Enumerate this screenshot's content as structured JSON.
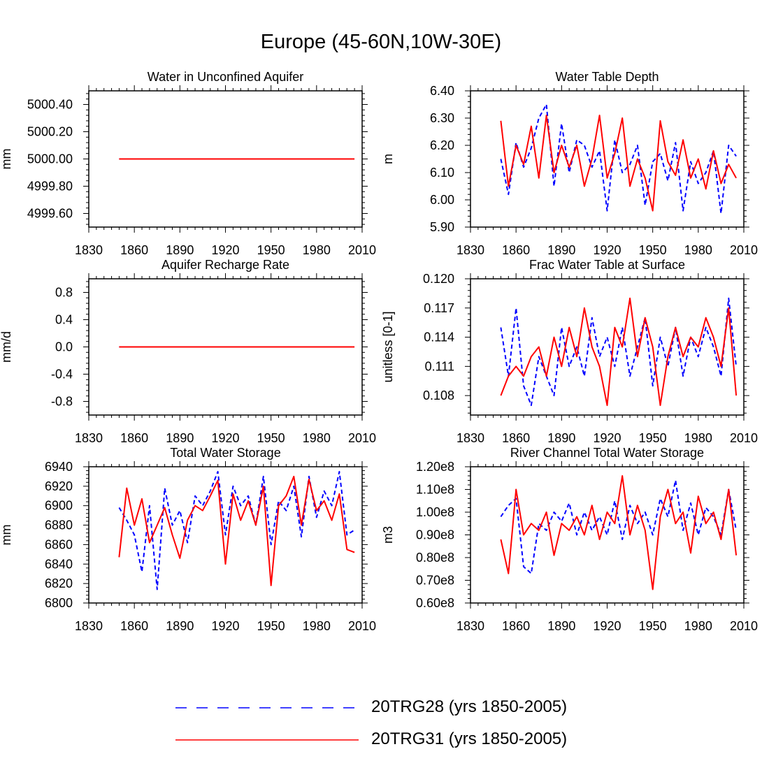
{
  "title": "Europe (45-60N,10W-30E)",
  "legend": [
    {
      "name": "20TRG28 (yrs 1850-2005)",
      "color": "#0000ff",
      "dash": "dashed"
    },
    {
      "name": "20TRG31 (yrs 1850-2005)",
      "color": "#ff0000",
      "dash": "solid"
    }
  ],
  "chart_data": [
    {
      "type": "line",
      "title": "Water in Unconfined Aquifer",
      "xlabel": "",
      "ylabel": "mm",
      "xlim": [
        1830,
        2010
      ],
      "ylim": [
        4999.5,
        5000.5
      ],
      "xticks": [
        1830,
        1860,
        1890,
        1920,
        1950,
        1980,
        2010
      ],
      "yticks": [
        4999.6,
        4999.8,
        5000.0,
        5000.2,
        5000.4
      ],
      "ytick_labels": [
        "4999.60",
        "4999.80",
        "5000.00",
        "5000.20",
        "5000.40"
      ],
      "x": [
        1850,
        2005
      ],
      "series": [
        {
          "name": "20TRG28 (yrs 1850-2005)",
          "values": [
            5000.0,
            5000.0
          ]
        },
        {
          "name": "20TRG31 (yrs 1850-2005)",
          "values": [
            5000.0,
            5000.0
          ]
        }
      ]
    },
    {
      "type": "line",
      "title": "Water Table Depth",
      "xlabel": "",
      "ylabel": "m",
      "xlim": [
        1830,
        2010
      ],
      "ylim": [
        5.9,
        6.4
      ],
      "xticks": [
        1830,
        1860,
        1890,
        1920,
        1950,
        1980,
        2010
      ],
      "yticks": [
        5.9,
        6.0,
        6.1,
        6.2,
        6.3,
        6.4
      ],
      "ytick_labels": [
        "5.90",
        "6.00",
        "6.10",
        "6.20",
        "6.30",
        "6.40"
      ],
      "x_start": 1850,
      "x_step": 5,
      "series": [
        {
          "name": "20TRG28 (yrs 1850-2005)",
          "values": [
            6.15,
            6.02,
            6.21,
            6.12,
            6.19,
            6.3,
            6.35,
            6.05,
            6.28,
            6.1,
            6.22,
            6.2,
            6.12,
            6.18,
            5.96,
            6.22,
            6.1,
            6.13,
            6.2,
            5.98,
            6.14,
            6.17,
            6.07,
            6.21,
            5.96,
            6.14,
            6.06,
            6.1,
            6.18,
            5.95,
            6.2,
            6.16
          ]
        },
        {
          "name": "20TRG31 (yrs 1850-2005)",
          "values": [
            6.29,
            6.05,
            6.2,
            6.13,
            6.27,
            6.08,
            6.31,
            6.1,
            6.2,
            6.12,
            6.2,
            6.05,
            6.15,
            6.31,
            6.08,
            6.17,
            6.3,
            6.05,
            6.15,
            6.08,
            5.96,
            6.29,
            6.14,
            6.09,
            6.22,
            6.08,
            6.15,
            6.04,
            6.18,
            6.06,
            6.13,
            6.08
          ]
        }
      ]
    },
    {
      "type": "line",
      "title": "Aquifer Recharge Rate",
      "xlabel": "",
      "ylabel": "mm/d",
      "xlim": [
        1830,
        2010
      ],
      "ylim": [
        -1.0,
        1.0
      ],
      "xticks": [
        1830,
        1860,
        1890,
        1920,
        1950,
        1980,
        2010
      ],
      "yticks": [
        -0.8,
        -0.4,
        0.0,
        0.4,
        0.8
      ],
      "ytick_labels": [
        "-0.8",
        "-0.4",
        "0.0",
        "0.4",
        "0.8"
      ],
      "x": [
        1850,
        2005
      ],
      "series": [
        {
          "name": "20TRG28 (yrs 1850-2005)",
          "values": [
            0.0,
            0.0
          ]
        },
        {
          "name": "20TRG31 (yrs 1850-2005)",
          "values": [
            0.0,
            0.0
          ]
        }
      ]
    },
    {
      "type": "line",
      "title": "Frac Water Table at Surface",
      "xlabel": "",
      "ylabel": "unitless [0-1]",
      "xlim": [
        1830,
        2010
      ],
      "ylim": [
        0.106,
        0.12
      ],
      "xticks": [
        1830,
        1860,
        1890,
        1920,
        1950,
        1980,
        2010
      ],
      "yticks": [
        0.108,
        0.111,
        0.114,
        0.117,
        0.12
      ],
      "ytick_labels": [
        "0.108",
        "0.111",
        "0.114",
        "0.117",
        "0.120"
      ],
      "x_start": 1850,
      "x_step": 5,
      "series": [
        {
          "name": "20TRG28 (yrs 1850-2005)",
          "values": [
            0.115,
            0.11,
            0.117,
            0.109,
            0.107,
            0.112,
            0.11,
            0.108,
            0.115,
            0.111,
            0.113,
            0.11,
            0.116,
            0.112,
            0.114,
            0.111,
            0.115,
            0.11,
            0.113,
            0.116,
            0.109,
            0.114,
            0.111,
            0.115,
            0.11,
            0.114,
            0.112,
            0.115,
            0.113,
            0.11,
            0.118,
            0.111
          ]
        },
        {
          "name": "20TRG31 (yrs 1850-2005)",
          "values": [
            0.108,
            0.11,
            0.111,
            0.11,
            0.112,
            0.113,
            0.11,
            0.114,
            0.111,
            0.115,
            0.112,
            0.117,
            0.113,
            0.111,
            0.107,
            0.115,
            0.113,
            0.118,
            0.112,
            0.116,
            0.113,
            0.107,
            0.112,
            0.115,
            0.112,
            0.114,
            0.113,
            0.116,
            0.114,
            0.111,
            0.117,
            0.108
          ]
        }
      ]
    },
    {
      "type": "line",
      "title": "Total Water Storage",
      "xlabel": "",
      "ylabel": "mm",
      "xlim": [
        1830,
        2010
      ],
      "ylim": [
        6800,
        6940
      ],
      "xticks": [
        1830,
        1860,
        1890,
        1920,
        1950,
        1980,
        2010
      ],
      "yticks": [
        6800,
        6820,
        6840,
        6860,
        6880,
        6900,
        6920,
        6940
      ],
      "ytick_labels": [
        "6800",
        "6820",
        "6840",
        "6860",
        "6880",
        "6900",
        "6920",
        "6940"
      ],
      "x_start": 1850,
      "x_step": 5,
      "series": [
        {
          "name": "20TRG28 (yrs 1850-2005)",
          "values": [
            6898,
            6885,
            6870,
            6832,
            6900,
            6814,
            6918,
            6880,
            6895,
            6862,
            6910,
            6900,
            6915,
            6935,
            6870,
            6920,
            6900,
            6910,
            6880,
            6930,
            6860,
            6905,
            6895,
            6920,
            6868,
            6930,
            6888,
            6915,
            6900,
            6935,
            6870,
            6875
          ]
        },
        {
          "name": "20TRG31 (yrs 1850-2005)",
          "values": [
            6847,
            6918,
            6880,
            6907,
            6862,
            6880,
            6898,
            6870,
            6846,
            6885,
            6900,
            6895,
            6910,
            6926,
            6840,
            6912,
            6885,
            6905,
            6880,
            6920,
            6818,
            6900,
            6910,
            6930,
            6880,
            6927,
            6895,
            6905,
            6885,
            6912,
            6855,
            6852
          ]
        }
      ]
    },
    {
      "type": "line",
      "title": "River Channel Total Water Storage",
      "xlabel": "",
      "ylabel": "m3",
      "xlim": [
        1830,
        2010
      ],
      "ylim": [
        60000000,
        120000000
      ],
      "xticks": [
        1830,
        1860,
        1890,
        1920,
        1950,
        1980,
        2010
      ],
      "yticks": [
        60000000,
        70000000,
        80000000,
        90000000,
        100000000,
        110000000,
        120000000
      ],
      "ytick_labels": [
        "0.60e8",
        "0.70e8",
        "0.80e8",
        "0.90e8",
        "1.00e8",
        "1.10e8",
        "1.20e8"
      ],
      "x_start": 1850,
      "x_step": 5,
      "series": [
        {
          "name": "20TRG28 (yrs 1850-2005)",
          "values": [
            98000000,
            103000000,
            106000000,
            76000000,
            73000000,
            95000000,
            92000000,
            100000000,
            96000000,
            104000000,
            90000000,
            100000000,
            92000000,
            98000000,
            90000000,
            105000000,
            88000000,
            103000000,
            95000000,
            100000000,
            90000000,
            106000000,
            98000000,
            114000000,
            92000000,
            104000000,
            90000000,
            102000000,
            98000000,
            90000000,
            110000000,
            92000000
          ]
        },
        {
          "name": "20TRG31 (yrs 1850-2005)",
          "values": [
            88000000,
            73000000,
            110000000,
            90000000,
            95000000,
            92000000,
            100000000,
            81000000,
            95000000,
            92000000,
            98000000,
            90000000,
            103000000,
            88000000,
            100000000,
            95000000,
            116000000,
            90000000,
            103000000,
            92000000,
            66000000,
            98000000,
            110000000,
            95000000,
            100000000,
            82000000,
            107000000,
            95000000,
            100000000,
            88000000,
            110000000,
            81000000
          ]
        }
      ]
    }
  ]
}
